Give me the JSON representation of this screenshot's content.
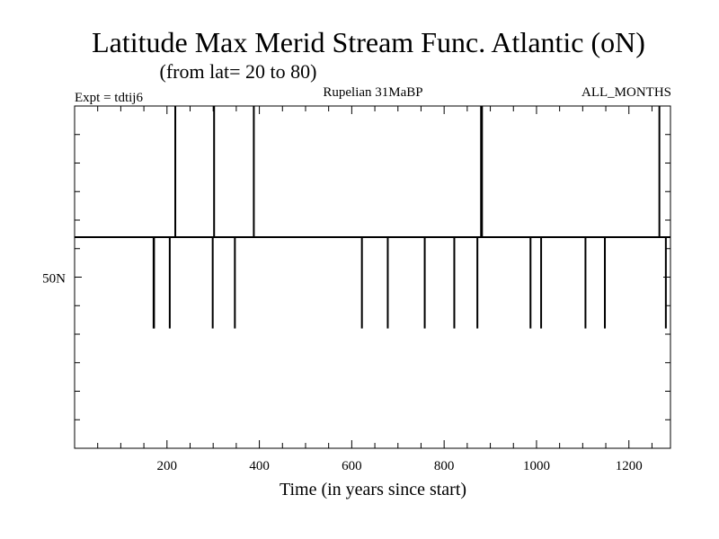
{
  "chart_data": {
    "type": "line",
    "title": "Latitude Max Merid Stream Func. Atlantic (oN)",
    "subtitle": "(from lat= 20 to 80)",
    "header_left": "Expt = tdtij6",
    "header_center": "Rupelian  31MaBP",
    "header_right": "ALL_MONTHS",
    "xlabel": "Time (in years since start)",
    "ylabel": "",
    "xlim": [
      0,
      1290
    ],
    "ylim": [
      20,
      80
    ],
    "xticks": [
      200,
      400,
      600,
      800,
      1000,
      1200
    ],
    "ytick_labels": [
      {
        "value": 50,
        "label": "50N"
      }
    ],
    "baseline": 57,
    "high": 80,
    "low": 41,
    "spikes": [
      {
        "x": 171,
        "dir": "down"
      },
      {
        "x": 172,
        "dir": "down"
      },
      {
        "x": 206,
        "dir": "down"
      },
      {
        "x": 218,
        "dir": "up"
      },
      {
        "x": 299,
        "dir": "down"
      },
      {
        "x": 302,
        "dir": "up"
      },
      {
        "x": 347,
        "dir": "down"
      },
      {
        "x": 388,
        "dir": "up"
      },
      {
        "x": 622,
        "dir": "down"
      },
      {
        "x": 678,
        "dir": "down"
      },
      {
        "x": 758,
        "dir": "down"
      },
      {
        "x": 822,
        "dir": "down"
      },
      {
        "x": 872,
        "dir": "down"
      },
      {
        "x": 880,
        "dir": "up"
      },
      {
        "x": 882,
        "dir": "up"
      },
      {
        "x": 987,
        "dir": "down"
      },
      {
        "x": 1010,
        "dir": "down"
      },
      {
        "x": 1106,
        "dir": "down"
      },
      {
        "x": 1148,
        "dir": "down"
      },
      {
        "x": 1266,
        "dir": "up"
      },
      {
        "x": 1280,
        "dir": "down"
      }
    ]
  }
}
